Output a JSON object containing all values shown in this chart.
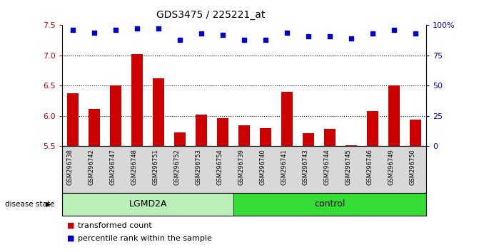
{
  "title": "GDS3475 / 225221_at",
  "samples": [
    "GSM296738",
    "GSM296742",
    "GSM296747",
    "GSM296748",
    "GSM296751",
    "GSM296752",
    "GSM296753",
    "GSM296754",
    "GSM296739",
    "GSM296740",
    "GSM296741",
    "GSM296743",
    "GSM296744",
    "GSM296745",
    "GSM296746",
    "GSM296749",
    "GSM296750"
  ],
  "bar_values": [
    6.38,
    6.12,
    6.5,
    7.02,
    6.62,
    5.73,
    6.02,
    5.96,
    5.84,
    5.8,
    6.4,
    5.72,
    5.79,
    5.51,
    6.08,
    6.5,
    5.94
  ],
  "dot_values": [
    96,
    94,
    96,
    97,
    97,
    88,
    93,
    92,
    88,
    88,
    94,
    91,
    91,
    89,
    93,
    96,
    93
  ],
  "groups": [
    {
      "label": "LGMD2A",
      "start": 0,
      "end": 8,
      "color": "#b8f0b8"
    },
    {
      "label": "control",
      "start": 8,
      "end": 17,
      "color": "#33dd33"
    }
  ],
  "ylim_left": [
    5.5,
    7.5
  ],
  "ylim_right": [
    0,
    100
  ],
  "yticks_left": [
    5.5,
    6.0,
    6.5,
    7.0,
    7.5
  ],
  "yticks_right": [
    0,
    25,
    50,
    75,
    100
  ],
  "bar_color": "#CC0000",
  "dot_color": "#0000CC",
  "grid_values": [
    6.0,
    6.5,
    7.0
  ],
  "legend_bar_label": "transformed count",
  "legend_dot_label": "percentile rank within the sample",
  "disease_state_label": "disease state",
  "background_color": "#ffffff",
  "figsize": [
    6.71,
    3.54
  ],
  "dpi": 100
}
